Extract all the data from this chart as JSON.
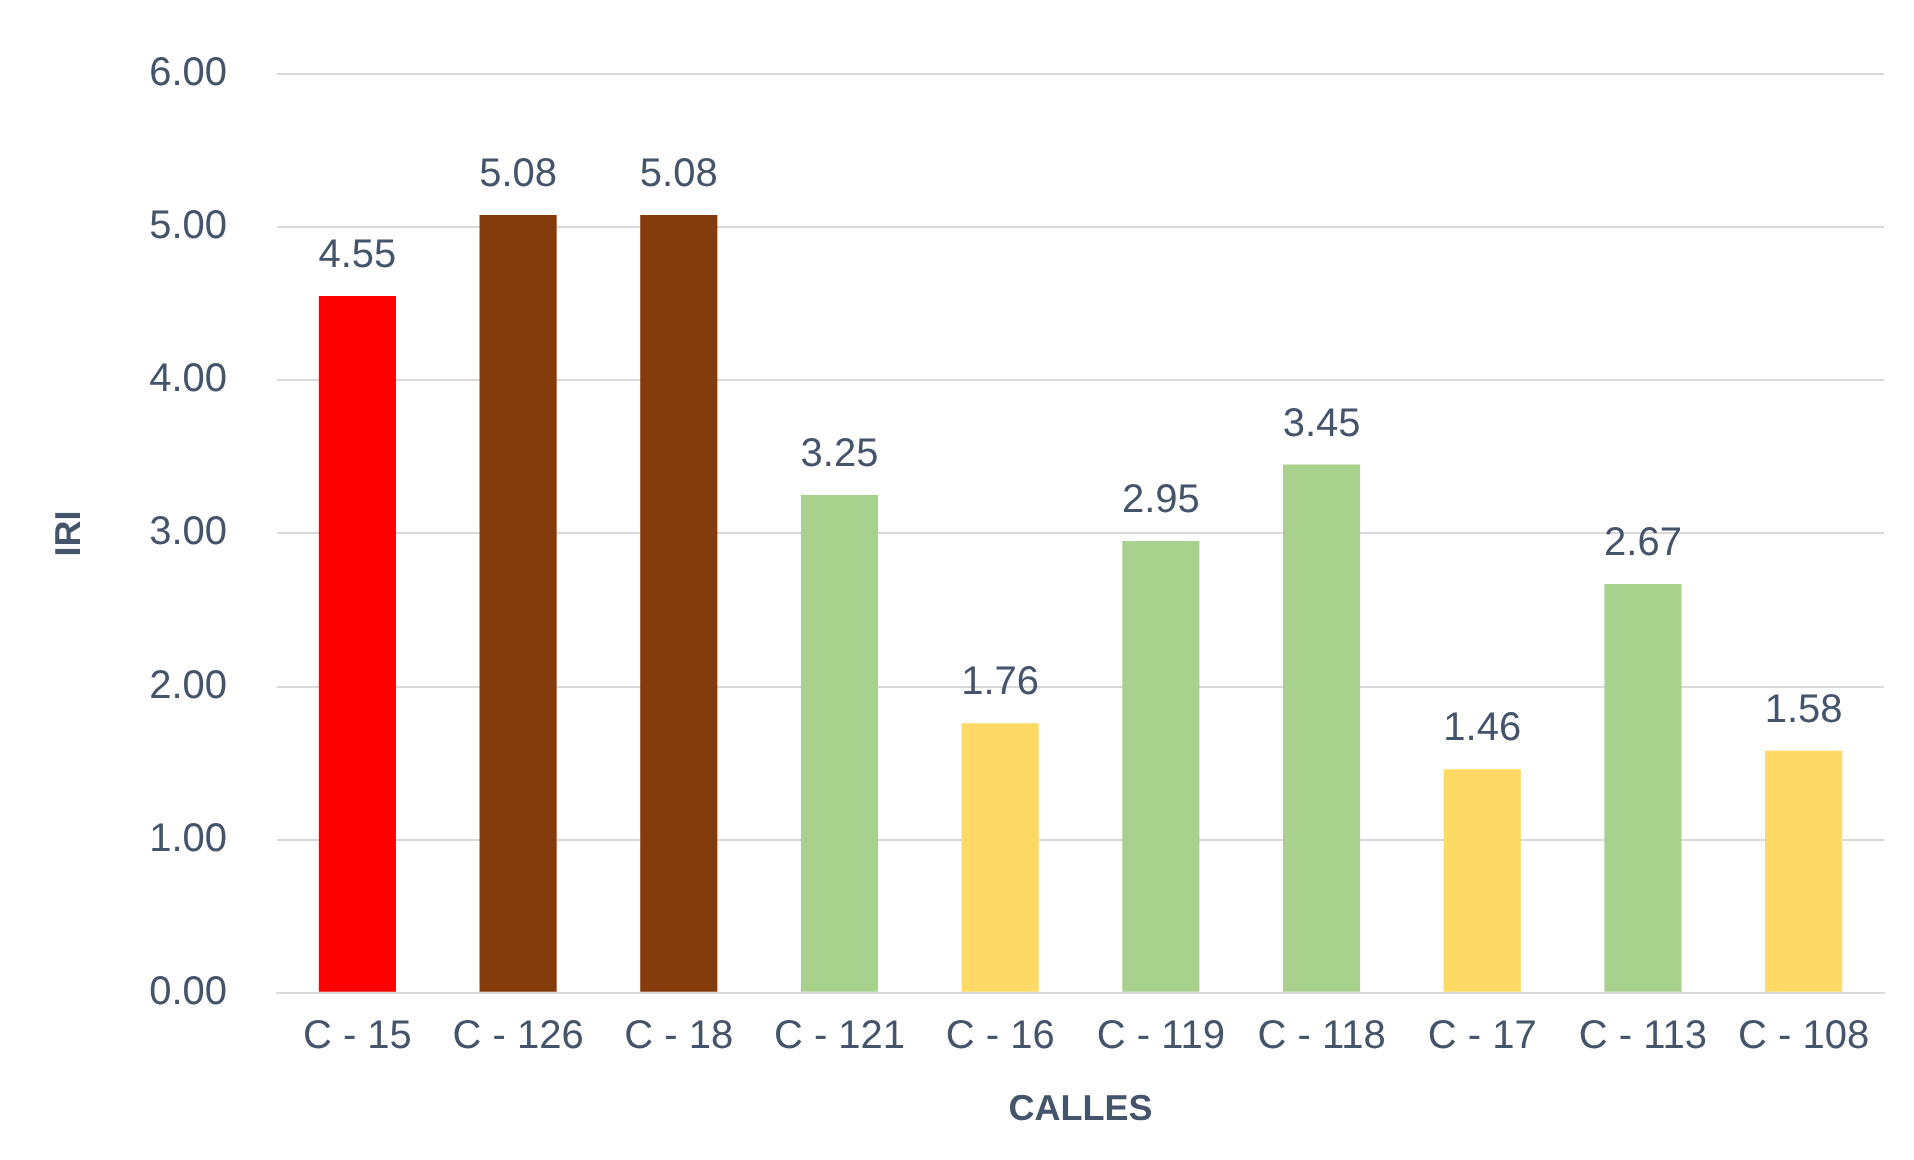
{
  "chart_data": {
    "type": "bar",
    "xlabel": "CALLES",
    "ylabel": "IRI",
    "categories": [
      "C - 15",
      "C - 126",
      "C - 18",
      "C - 121",
      "C - 16",
      "C - 119",
      "C - 118",
      "C - 17",
      "C - 113",
      "C - 108"
    ],
    "values": [
      4.55,
      5.08,
      5.08,
      3.25,
      1.76,
      2.95,
      3.45,
      1.46,
      2.67,
      1.58
    ],
    "colors": [
      "#ff0000",
      "#843c0c",
      "#843c0c",
      "#a9d18e",
      "#ffd966",
      "#a9d18e",
      "#a9d18e",
      "#ffd966",
      "#a9d18e",
      "#ffd966"
    ],
    "ylim": [
      0,
      6
    ],
    "yticks": [
      {
        "value": 0,
        "label": "0.00"
      },
      {
        "value": 1,
        "label": "1.00"
      },
      {
        "value": 2,
        "label": "2.00"
      },
      {
        "value": 3,
        "label": "3.00"
      },
      {
        "value": 4,
        "label": "4.00"
      },
      {
        "value": 5,
        "label": "5.00"
      },
      {
        "value": 6,
        "label": "6.00"
      }
    ],
    "grid": "y",
    "data_labels": true,
    "legend": false
  }
}
